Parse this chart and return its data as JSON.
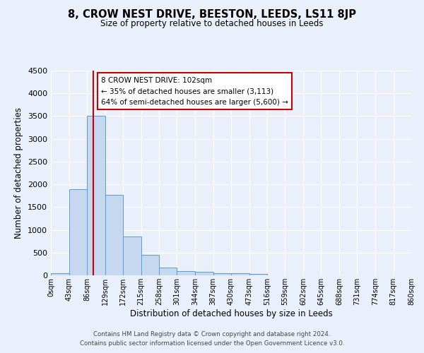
{
  "title": "8, CROW NEST DRIVE, BEESTON, LEEDS, LS11 8JP",
  "subtitle": "Size of property relative to detached houses in Leeds",
  "xlabel": "Distribution of detached houses by size in Leeds",
  "ylabel": "Number of detached properties",
  "bar_values": [
    50,
    1900,
    3500,
    1775,
    850,
    450,
    175,
    100,
    75,
    50,
    40,
    30,
    0,
    0,
    0,
    0,
    0,
    0,
    0,
    0
  ],
  "bin_labels": [
    "0sqm",
    "43sqm",
    "86sqm",
    "129sqm",
    "172sqm",
    "215sqm",
    "258sqm",
    "301sqm",
    "344sqm",
    "387sqm",
    "430sqm",
    "473sqm",
    "516sqm",
    "559sqm",
    "602sqm",
    "645sqm",
    "688sqm",
    "731sqm",
    "774sqm",
    "817sqm",
    "860sqm"
  ],
  "bin_edges": [
    0,
    43,
    86,
    129,
    172,
    215,
    258,
    301,
    344,
    387,
    430,
    473,
    516,
    559,
    602,
    645,
    688,
    731,
    774,
    817,
    860
  ],
  "bar_color": "#c5d8f0",
  "bar_edge_color": "#5b9bd5",
  "red_line_x": 102,
  "ylim": [
    0,
    4500
  ],
  "yticks": [
    0,
    500,
    1000,
    1500,
    2000,
    2500,
    3000,
    3500,
    4000,
    4500
  ],
  "annotation_lines": [
    "8 CROW NEST DRIVE: 102sqm",
    "← 35% of detached houses are smaller (3,113)",
    "64% of semi-detached houses are larger (5,600) →"
  ],
  "footer_line1": "Contains HM Land Registry data © Crown copyright and database right 2024.",
  "footer_line2": "Contains public sector information licensed under the Open Government Licence v3.0.",
  "background_color": "#eaf0fb",
  "grid_color": "#ffffff",
  "red_line_color": "#cc0000",
  "fig_width": 6.0,
  "fig_height": 5.0,
  "fig_dpi": 100
}
